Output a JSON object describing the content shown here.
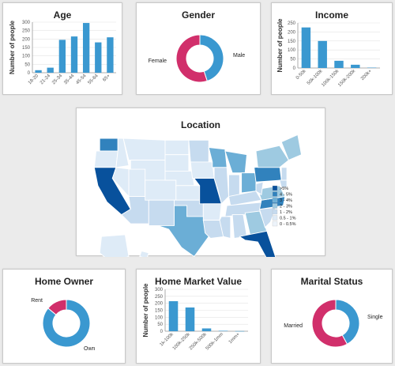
{
  "colors": {
    "bar": "#3a98d0",
    "pie_blue": "#3a98d0",
    "pie_pink": "#d12f6b",
    "axis": "#999999",
    "grid": "#e3e3e3",
    "map_scale": [
      "#deebf7",
      "#c6dbef",
      "#9ecae1",
      "#6baed6",
      "#3182bd",
      "#08519c"
    ]
  },
  "charts": {
    "age": {
      "type": "bar",
      "title": "Age",
      "ylabel": "Number of people",
      "categories": [
        "18-20",
        "21-24",
        "25-34",
        "35-44",
        "45-54",
        "55-64",
        "65+"
      ],
      "values": [
        15,
        30,
        195,
        215,
        295,
        180,
        210
      ],
      "yticks": [
        0,
        50,
        100,
        150,
        200,
        250,
        300
      ],
      "ylim": [
        0,
        300
      ]
    },
    "gender": {
      "type": "pie",
      "title": "Gender",
      "labels": [
        "Male",
        "Female"
      ],
      "values": [
        45,
        55
      ]
    },
    "income": {
      "type": "bar",
      "title": "Income",
      "ylabel": "Number of people",
      "categories": [
        "0-50k",
        "50k-100k",
        "100k-150k",
        "150k-200k",
        "200k+"
      ],
      "values": [
        225,
        150,
        40,
        18,
        2
      ],
      "yticks": [
        0,
        50,
        100,
        150,
        200,
        250
      ],
      "ylim": [
        0,
        250
      ]
    },
    "location": {
      "type": "heatmap",
      "title": "Location",
      "legend": [
        ">5%",
        "4 - 5%",
        "3 - 4%",
        "2 - 3%",
        "1 - 2%",
        "0.5 - 1%",
        "0 - 0.5%"
      ],
      "highlighted_states": [
        {
          "state": "California",
          "bin": 0
        },
        {
          "state": "Missouri",
          "bin": 0
        },
        {
          "state": "Florida",
          "bin": 0
        },
        {
          "state": "Pennsylvania",
          "bin": 2
        },
        {
          "state": "North Carolina",
          "bin": 2
        },
        {
          "state": "Texas",
          "bin": 3
        },
        {
          "state": "Washington",
          "bin": 3
        }
      ]
    },
    "home_owner": {
      "type": "pie",
      "title": "Home Owner",
      "labels": [
        "Own",
        "Rent"
      ],
      "values": [
        86,
        14
      ]
    },
    "home_market_value": {
      "type": "bar",
      "title": "Home Market Value",
      "ylabel": "Number of people",
      "categories": [
        "1k-100k",
        "100k-250k",
        "250k-500k",
        "500k-1mm",
        "1mm+"
      ],
      "values": [
        215,
        170,
        20,
        3,
        1
      ],
      "yticks": [
        0,
        50,
        100,
        150,
        200,
        250,
        300
      ],
      "ylim": [
        0,
        300
      ]
    },
    "marital_status": {
      "type": "pie",
      "title": "Marital Status",
      "labels": [
        "Single",
        "Married"
      ],
      "values": [
        42,
        58
      ]
    }
  },
  "chart_data": [
    {
      "type": "bar",
      "title": "Age",
      "ylabel": "Number of people",
      "categories": [
        "18-20",
        "21-24",
        "25-34",
        "35-44",
        "45-54",
        "55-64",
        "65+"
      ],
      "values": [
        15,
        30,
        195,
        215,
        295,
        180,
        210
      ],
      "ylim": [
        0,
        300
      ]
    },
    {
      "type": "pie",
      "title": "Gender",
      "labels": [
        "Male",
        "Female"
      ],
      "values": [
        45,
        55
      ]
    },
    {
      "type": "bar",
      "title": "Income",
      "ylabel": "Number of people",
      "categories": [
        "0-50k",
        "50k-100k",
        "100k-150k",
        "150k-200k",
        "200k+"
      ],
      "values": [
        225,
        150,
        40,
        18,
        2
      ],
      "ylim": [
        0,
        250
      ]
    },
    {
      "type": "heatmap",
      "title": "Location",
      "legend": [
        ">5%",
        "4 - 5%",
        "3 - 4%",
        "2 - 3%",
        "1 - 2%",
        "0.5 - 1%",
        "0 - 0.5%"
      ]
    },
    {
      "type": "pie",
      "title": "Home Owner",
      "labels": [
        "Own",
        "Rent"
      ],
      "values": [
        86,
        14
      ]
    },
    {
      "type": "bar",
      "title": "Home Market Value",
      "ylabel": "Number of people",
      "categories": [
        "1k-100k",
        "100k-250k",
        "250k-500k",
        "500k-1mm",
        "1mm+"
      ],
      "values": [
        215,
        170,
        20,
        3,
        1
      ],
      "ylim": [
        0,
        300
      ]
    },
    {
      "type": "pie",
      "title": "Marital Status",
      "labels": [
        "Single",
        "Married"
      ],
      "values": [
        42,
        58
      ]
    }
  ]
}
